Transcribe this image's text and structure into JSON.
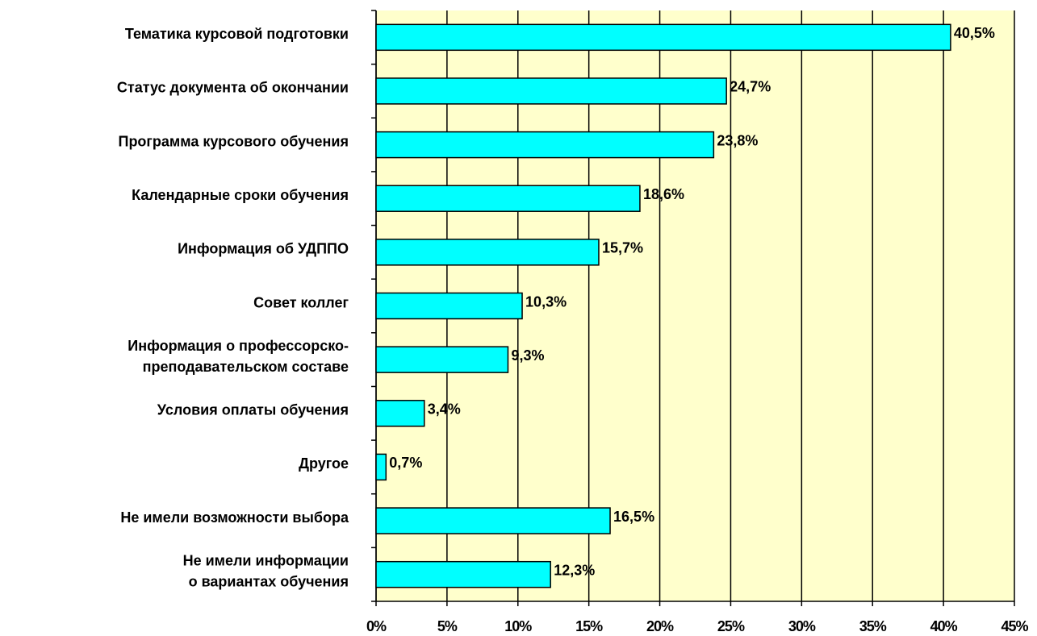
{
  "chart_data": {
    "type": "barh",
    "categories": [
      "Тематика курсовой подготовки",
      "Статус документа об окончании",
      "Программа курсового обучения",
      "Календарные сроки обучения",
      "Информация об УДППО",
      "Совет коллег",
      "Информация о профессорско-\nпреподавательском составе ",
      "Условия оплаты обучения",
      "Другое ",
      "Не имели возможности выбора",
      "Не имели информации\nо вариантах обучения"
    ],
    "values": [
      40.5,
      24.7,
      23.8,
      18.6,
      15.7,
      10.3,
      9.3,
      3.4,
      0.7,
      16.5,
      12.3
    ],
    "value_labels": [
      "40,5%",
      "24,7%",
      "23,8%",
      "18,6%",
      "15,7%",
      "10,3%",
      "9,3%",
      "3,4%",
      "0,7%",
      "16,5%",
      "12,3%"
    ],
    "color": "#00ffff",
    "background": "#ffffcc",
    "xlim": [
      0,
      45
    ],
    "xticks": [
      {
        "value": 0,
        "label": "0%"
      },
      {
        "value": 5,
        "label": "5%"
      },
      {
        "value": 10,
        "label": "10%"
      },
      {
        "value": 15,
        "label": "15%"
      },
      {
        "value": 20,
        "label": "20%"
      },
      {
        "value": 25,
        "label": "25%"
      },
      {
        "value": 30,
        "label": "30%"
      },
      {
        "value": 35,
        "label": "35%"
      },
      {
        "value": 40,
        "label": "40%"
      },
      {
        "value": 45,
        "label": "45%"
      }
    ],
    "grid": true
  }
}
